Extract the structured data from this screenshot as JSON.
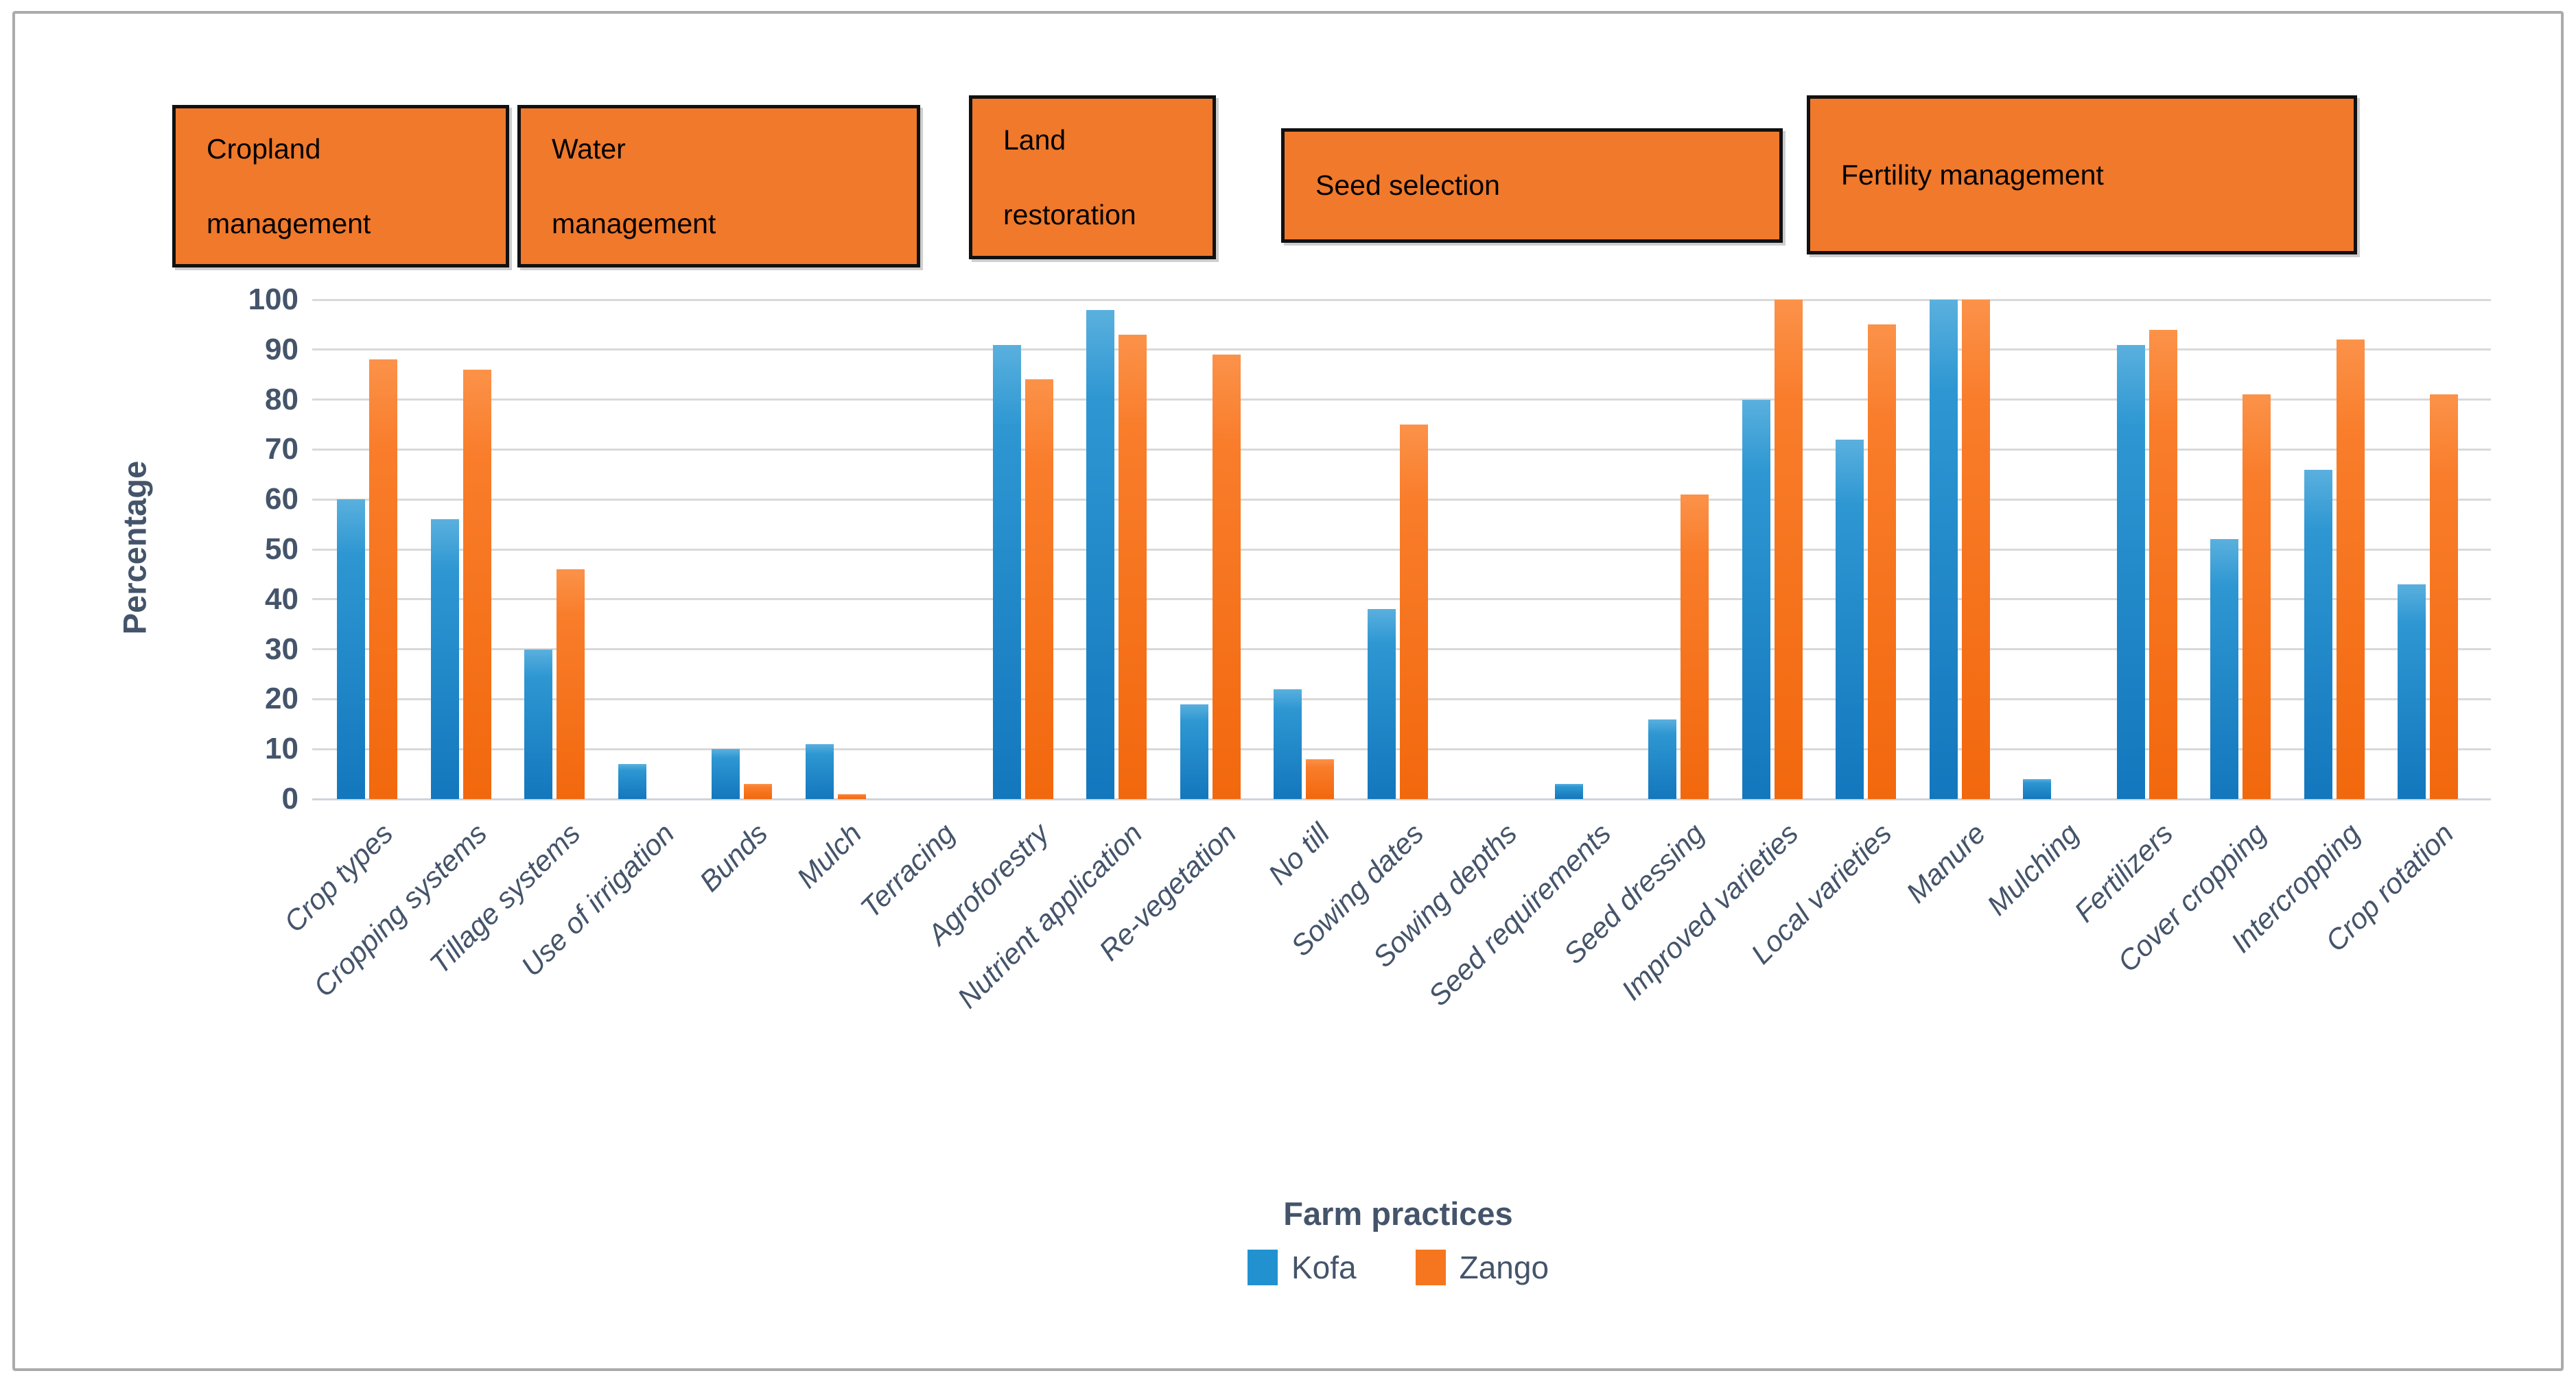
{
  "chart_data": {
    "type": "bar",
    "title": "Farm practices",
    "xlabel": "Farm practices",
    "ylabel": "Percentage",
    "ylim": [
      0,
      100
    ],
    "ytick_step": 10,
    "grid": true,
    "legend_position": "bottom-center",
    "categories": [
      "Crop types",
      "Cropping systems",
      "Tillage systems",
      "Use of irrigation",
      "Bunds",
      "Mulch",
      "Terracing",
      "Agroforestry",
      "Nutrient application",
      "Re-vegetation",
      "No till",
      "Sowing dates",
      "Sowing depths",
      "Seed requirements",
      "Seed dressing",
      "Improved varieties",
      "Local varieties",
      "Manure",
      "Mulching",
      "Fertilizers",
      "Cover cropping",
      "Intercropping",
      "Crop rotation"
    ],
    "series": [
      {
        "name": "Kofa",
        "color": "#2191d0",
        "values": [
          60,
          56,
          30,
          7,
          10,
          11,
          0,
          91,
          98,
          19,
          22,
          38,
          0,
          3,
          16,
          80,
          72,
          100,
          4,
          91,
          52,
          66,
          43
        ]
      },
      {
        "name": "Zango",
        "color": "#f5761f",
        "values": [
          88,
          86,
          46,
          0,
          3,
          1,
          0,
          84,
          93,
          89,
          8,
          75,
          0,
          0,
          61,
          100,
          95,
          100,
          0,
          94,
          81,
          92,
          81
        ]
      }
    ],
    "group_boxes": [
      {
        "lines": [
          "Cropland",
          "management"
        ],
        "categories_covered": [
          "Crop types",
          "Cropping systems",
          "Tillage systems"
        ]
      },
      {
        "lines": [
          "Water",
          "management"
        ],
        "categories_covered": [
          "Use of irrigation",
          "Bunds",
          "Mulch",
          "Terracing"
        ]
      },
      {
        "lines": [
          "Land",
          "restoration"
        ],
        "categories_covered": [
          "Agroforestry",
          "Nutrient application",
          "Re-vegetation"
        ]
      },
      {
        "lines": [
          "Seed selection"
        ],
        "categories_covered": [
          "No till",
          "Sowing dates",
          "Sowing depths",
          "Seed requirements",
          "Seed dressing"
        ]
      },
      {
        "lines": [
          "Fertility management"
        ],
        "categories_covered": [
          "Improved varieties",
          "Local varieties",
          "Manure",
          "Mulching",
          "Fertilizers",
          "Cover cropping",
          "Intercropping",
          "Crop rotation"
        ]
      }
    ]
  },
  "colors": {
    "kofa_bar": "#2191d0",
    "zango_bar": "#f5761f",
    "group_box_fill": "#f0792c",
    "group_box_border": "#111111",
    "axis_text": "#44546a",
    "gridline": "#d9d9d9",
    "frame_border": "#ababab",
    "background": "#ffffff"
  }
}
